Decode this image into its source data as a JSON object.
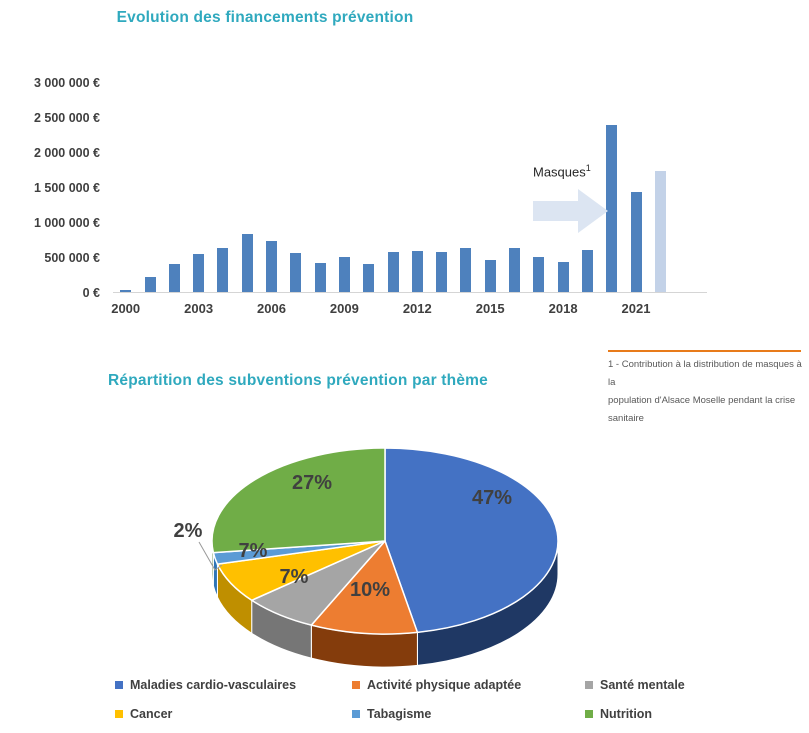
{
  "colors": {
    "title_teal": "#2FA9BE",
    "axis_text": "#3F3F3F",
    "axis_line": "#D5D5D5",
    "bar_blue": "#4E81BD",
    "bar_light_blue": "#C3D2E8",
    "arrow_fill": "#DCE5F2",
    "footnote_rule_orange": "#E87B1A",
    "footnote_text": "#595959",
    "pie_label_text": "#404040"
  },
  "chart_data": [
    {
      "type": "bar",
      "title": "Evolution des financements prévention",
      "x": [
        2000,
        2001,
        2002,
        2003,
        2004,
        2005,
        2006,
        2007,
        2008,
        2009,
        2010,
        2011,
        2012,
        2013,
        2014,
        2015,
        2016,
        2017,
        2018,
        2019,
        2020,
        2021,
        2022
      ],
      "values": [
        50000,
        230000,
        420000,
        560000,
        650000,
        850000,
        740000,
        570000,
        430000,
        520000,
        420000,
        580000,
        600000,
        590000,
        640000,
        470000,
        640000,
        520000,
        440000,
        620000,
        2400000,
        1450000,
        1750000
      ],
      "bar_color": "#4E81BD",
      "last_bar_color": "#C3D2E8",
      "highlight_last": true,
      "ylim": [
        0,
        3000000
      ],
      "y_unit": "€",
      "grid": false,
      "y_tick_labels": [
        "3 000 000 €",
        "2 500 000 €",
        "2 000 000 €",
        "1 500 000 €",
        "1 000 000 €",
        "500 000 €",
        "0 €"
      ],
      "x_tick_labels": [
        "2000",
        "2003",
        "2006",
        "2009",
        "2012",
        "2015",
        "2018",
        "2021"
      ],
      "annotation": {
        "text": "Masques",
        "sup": "1",
        "shape": "right-arrow"
      },
      "footnote": [
        "1 - Contribution à la distribution de masques à la",
        "population d'Alsace Moselle pendant la crise sanitaire"
      ]
    },
    {
      "type": "pie",
      "title": "Répartition des subventions prévention par thème",
      "labels": [
        "Maladies cardio-vasculaires",
        "Activité physique adaptée",
        "Santé mentale",
        "Cancer",
        "Tabagisme",
        "Nutrition"
      ],
      "values": [
        47,
        10,
        7,
        7,
        2,
        27
      ],
      "unit": "%",
      "data_labels": [
        "47%",
        "10%",
        "7%",
        "7%",
        "2%",
        "27%"
      ],
      "colors": [
        "#4472C4",
        "#ED7D31",
        "#A5A5A5",
        "#FFC000",
        "#5B9BD5",
        "#70AD47"
      ],
      "side_colors": [
        "#1F3864",
        "#843C0C",
        "#767676",
        "#BF8F00",
        "#2E75B6",
        "#4F7A2B"
      ],
      "style": "3d",
      "start_angle_deg": 0,
      "direction": "clockwise",
      "legend_position": "bottom"
    }
  ]
}
